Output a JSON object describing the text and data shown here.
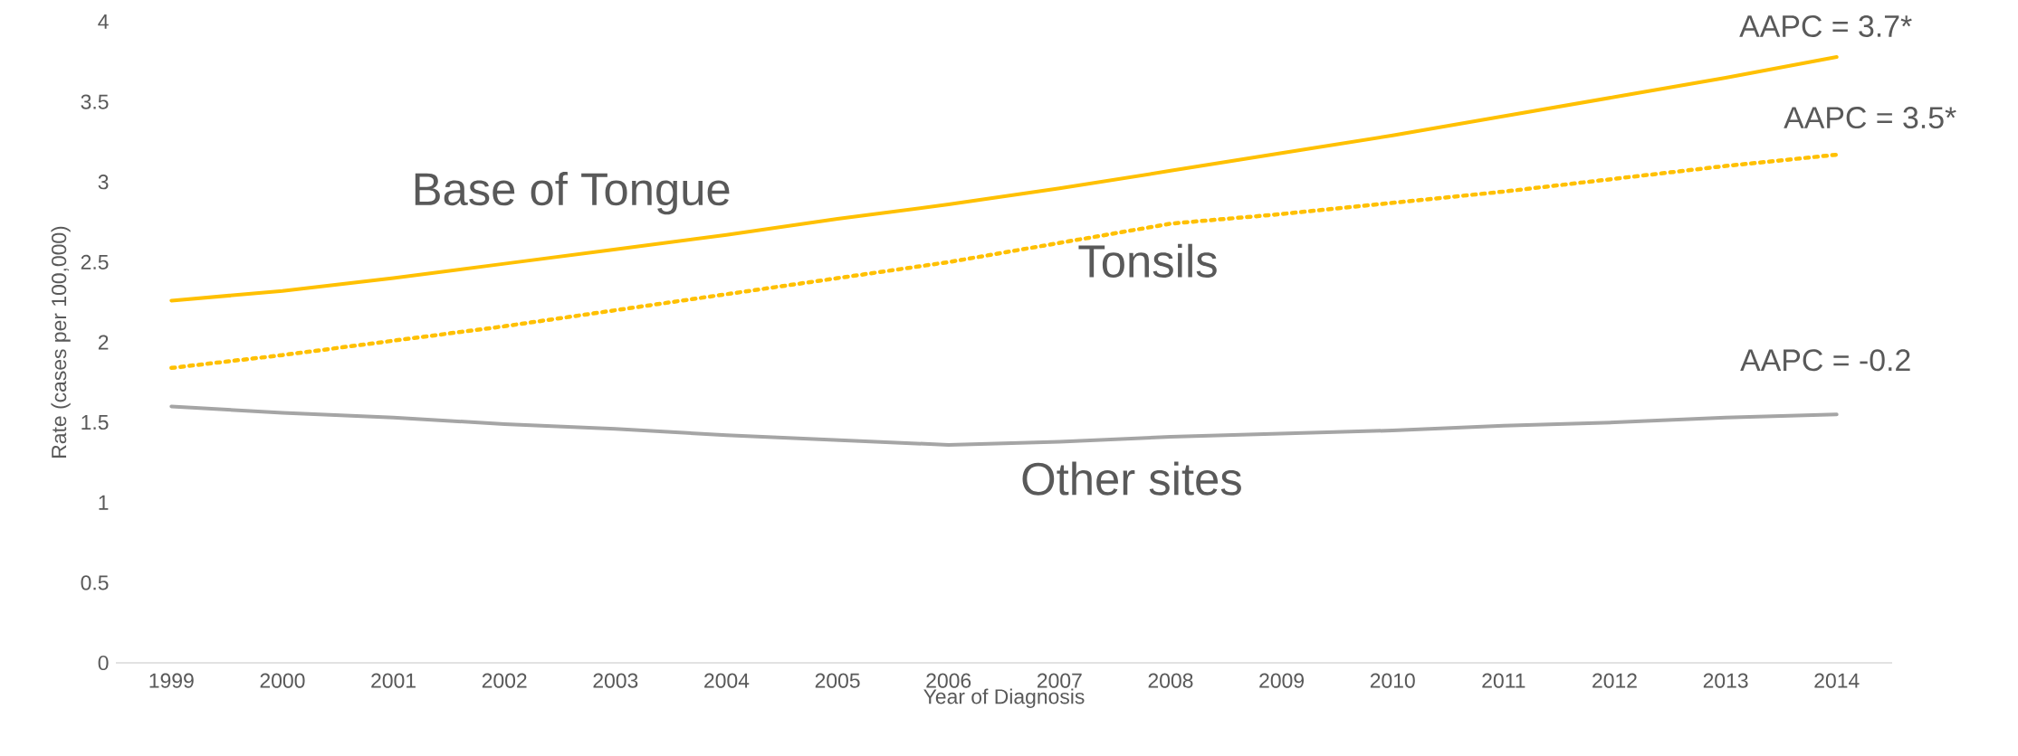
{
  "chart_data": {
    "type": "line",
    "xlabel": "Year of Diagnosis",
    "ylabel": "Rate (cases per 100,000)",
    "categories": [
      "1999",
      "2000",
      "2001",
      "2002",
      "2003",
      "2004",
      "2005",
      "2006",
      "2007",
      "2008",
      "2009",
      "2010",
      "2011",
      "2012",
      "2013",
      "2014"
    ],
    "ylim": [
      0,
      4
    ],
    "yticks": [
      0,
      0.5,
      1,
      1.5,
      2,
      2.5,
      3,
      3.5,
      4
    ],
    "grid": false,
    "marker": "none",
    "series": [
      {
        "name": "Base of Tongue",
        "color": "#ffc000",
        "line_style": "solid",
        "values": [
          2.26,
          2.32,
          2.4,
          2.49,
          2.58,
          2.67,
          2.77,
          2.86,
          2.96,
          3.07,
          3.18,
          3.29,
          3.41,
          3.53,
          3.65,
          3.78
        ]
      },
      {
        "name": "Tonsils",
        "color": "#ffc000",
        "line_style": "dotted",
        "values": [
          1.84,
          1.92,
          2.01,
          2.1,
          2.2,
          2.3,
          2.4,
          2.5,
          2.62,
          2.74,
          2.8,
          2.87,
          2.94,
          3.02,
          3.1,
          3.17
        ]
      },
      {
        "name": "Other sites",
        "color": "#a5a5a5",
        "line_style": "solid",
        "values": [
          1.6,
          1.56,
          1.53,
          1.49,
          1.46,
          1.42,
          1.39,
          1.36,
          1.38,
          1.41,
          1.43,
          1.45,
          1.48,
          1.5,
          1.53,
          1.55
        ]
      }
    ],
    "annotations": [
      "AAPC = 3.7*",
      "AAPC = 3.5*",
      "AAPC = -0.2"
    ]
  }
}
